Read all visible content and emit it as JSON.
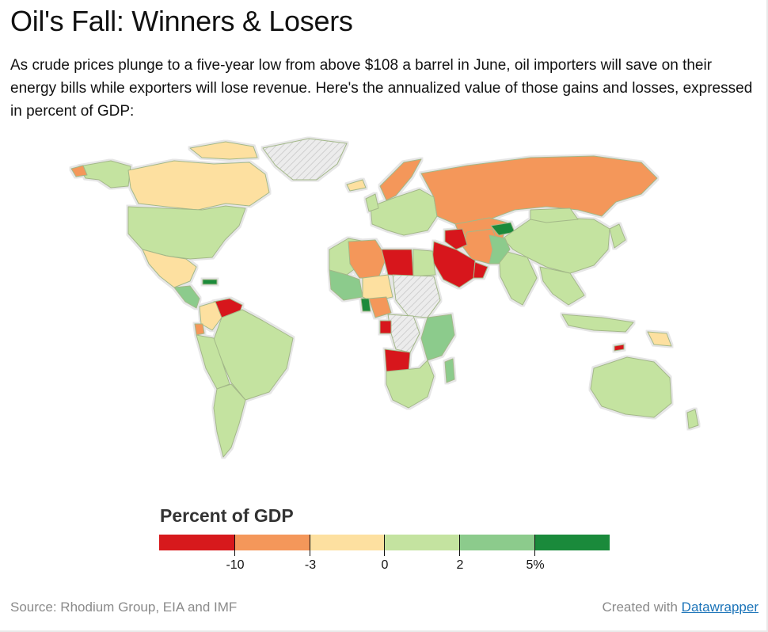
{
  "header": {
    "title": "Oil's Fall: Winners & Losers",
    "intro": "As crude prices plunge to a five-year low from above $108 a barrel in June, oil importers will save on their energy bills while exporters will lose revenue. Here's the annualized value of those gains and losses, expressed in percent of GDP:"
  },
  "legend": {
    "title": "Percent of GDP",
    "colors": [
      "#d7191c",
      "#f4975a",
      "#fde0a0",
      "#c4e3a0",
      "#8ccb8c",
      "#1a8a3b"
    ],
    "ticks": [
      "-10",
      "-3",
      "0",
      "2",
      "5%"
    ]
  },
  "map": {
    "colors": {
      "land_stroke": "#8aa86a",
      "no_data": "#e2e2e2",
      "outline": "#d8d8d8"
    }
  },
  "footer": {
    "source": "Source: Rhodium Group, EIA and IMF",
    "credit_prefix": "Created with ",
    "credit_link": "Datawrapper"
  }
}
